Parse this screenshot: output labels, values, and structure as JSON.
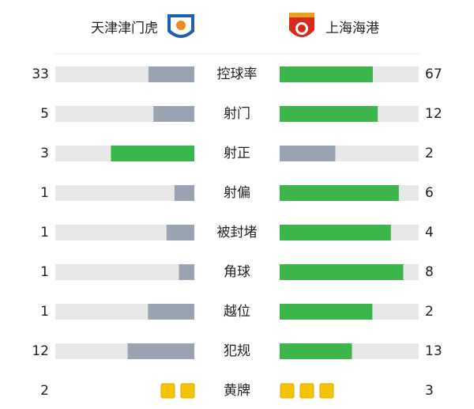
{
  "header": {
    "home_team": "天津津门虎",
    "away_team": "上海海港"
  },
  "colors": {
    "leader": "#3cb54a",
    "trailer": "#9aa3b2",
    "track": "#e8e8e8",
    "card": "#f5c400"
  },
  "stats": [
    {
      "label": "控球率",
      "home": 33,
      "away": 67,
      "type": "bar"
    },
    {
      "label": "射门",
      "home": 5,
      "away": 12,
      "type": "bar"
    },
    {
      "label": "射正",
      "home": 3,
      "away": 2,
      "type": "bar"
    },
    {
      "label": "射偏",
      "home": 1,
      "away": 6,
      "type": "bar"
    },
    {
      "label": "被封堵",
      "home": 1,
      "away": 4,
      "type": "bar"
    },
    {
      "label": "角球",
      "home": 1,
      "away": 8,
      "type": "bar"
    },
    {
      "label": "越位",
      "home": 1,
      "away": 2,
      "type": "bar"
    },
    {
      "label": "犯规",
      "home": 12,
      "away": 13,
      "type": "bar"
    },
    {
      "label": "黄牌",
      "home": 2,
      "away": 3,
      "type": "cards"
    }
  ]
}
